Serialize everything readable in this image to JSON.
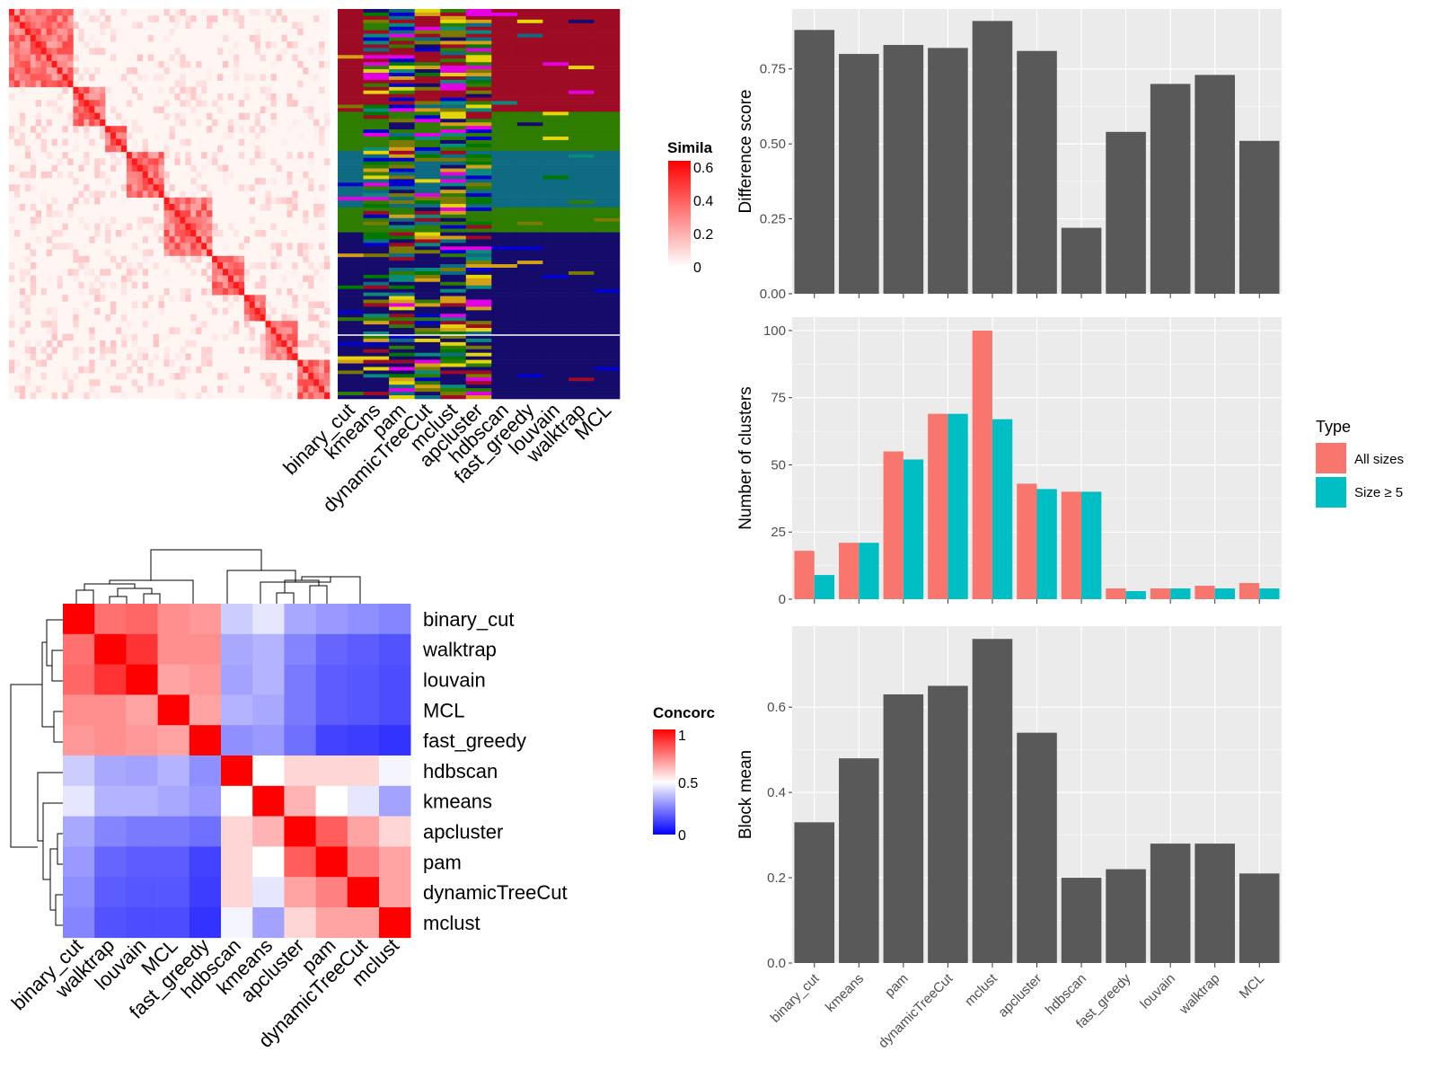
{
  "colors": {
    "bar_gray": "#595959",
    "panel_bg": "#ebebeb",
    "grid": "#ffffff",
    "all_sizes": "#F8766D",
    "size_ge5": "#00BFC4",
    "sim_high": "#ff0000",
    "concord_high": "#ff0000",
    "concord_mid": "#ffffff",
    "concord_low": "#0000ff",
    "cluster_palette": [
      "#9e0b24",
      "#0e6b82",
      "#140b6b",
      "#2e7d00",
      "#e5d60a",
      "#e400e4",
      "#0a8a7a",
      "#7a7a00",
      "#d4a017",
      "#0000cc",
      "#007700"
    ]
  },
  "similarity_heatmap": {
    "legend_title": "Simila",
    "legend_ticks": [
      "0.6",
      "0.4",
      "0.2",
      "0"
    ]
  },
  "method_labels_top": [
    "binary_cut",
    "kmeans",
    "pam",
    "dynamicTreeCut",
    "mclust",
    "apcluster",
    "hdbscan",
    "fast_greedy",
    "louvain",
    "walktrap",
    "MCL"
  ],
  "concordance": {
    "legend_title": "Concorc",
    "legend_ticks": [
      "1",
      "0.5",
      "0"
    ],
    "methods": [
      "binary_cut",
      "walktrap",
      "louvain",
      "MCL",
      "fast_greedy",
      "hdbscan",
      "kmeans",
      "apcluster",
      "pam",
      "dynamicTreeCut",
      "mclust"
    ],
    "matrix": [
      [
        1.0,
        0.78,
        0.8,
        0.72,
        0.7,
        0.4,
        0.45,
        0.33,
        0.3,
        0.28,
        0.26
      ],
      [
        0.78,
        1.0,
        0.9,
        0.72,
        0.72,
        0.33,
        0.35,
        0.26,
        0.2,
        0.18,
        0.16
      ],
      [
        0.8,
        0.9,
        1.0,
        0.68,
        0.7,
        0.32,
        0.35,
        0.24,
        0.18,
        0.17,
        0.15
      ],
      [
        0.72,
        0.72,
        0.68,
        1.0,
        0.68,
        0.35,
        0.33,
        0.24,
        0.18,
        0.17,
        0.15
      ],
      [
        0.7,
        0.72,
        0.7,
        0.68,
        1.0,
        0.28,
        0.3,
        0.22,
        0.13,
        0.12,
        0.1
      ],
      [
        0.4,
        0.33,
        0.32,
        0.35,
        0.28,
        1.0,
        0.5,
        0.58,
        0.58,
        0.58,
        0.48
      ],
      [
        0.45,
        0.35,
        0.35,
        0.33,
        0.3,
        0.5,
        1.0,
        0.65,
        0.5,
        0.45,
        0.32
      ],
      [
        0.33,
        0.26,
        0.24,
        0.24,
        0.22,
        0.58,
        0.65,
        1.0,
        0.82,
        0.68,
        0.58
      ],
      [
        0.3,
        0.2,
        0.18,
        0.18,
        0.13,
        0.58,
        0.5,
        0.82,
        1.0,
        0.75,
        0.68
      ],
      [
        0.28,
        0.18,
        0.17,
        0.17,
        0.12,
        0.58,
        0.45,
        0.68,
        0.75,
        1.0,
        0.68
      ],
      [
        0.26,
        0.16,
        0.15,
        0.15,
        0.1,
        0.48,
        0.32,
        0.58,
        0.68,
        0.68,
        1.0
      ]
    ]
  },
  "chart_data": [
    {
      "type": "bar",
      "ylabel": "Difference score",
      "categories": [
        "binary_cut",
        "kmeans",
        "pam",
        "dynamicTreeCut",
        "mclust",
        "apcluster",
        "hdbscan",
        "fast_greedy",
        "louvain",
        "walktrap",
        "MCL"
      ],
      "values": [
        0.88,
        0.8,
        0.83,
        0.82,
        0.91,
        0.81,
        0.22,
        0.54,
        0.7,
        0.73,
        0.51
      ],
      "ylim": [
        0,
        0.95
      ],
      "yticks": [
        "0.00",
        "0.25",
        "0.50",
        "0.75"
      ],
      "grid": true
    },
    {
      "type": "bar",
      "ylabel": "Number of clusters",
      "categories": [
        "binary_cut",
        "kmeans",
        "pam",
        "dynamicTreeCut",
        "mclust",
        "apcluster",
        "hdbscan",
        "fast_greedy",
        "louvain",
        "walktrap",
        "MCL"
      ],
      "series": [
        {
          "name": "All sizes",
          "values": [
            18,
            21,
            55,
            69,
            100,
            43,
            40,
            4,
            4,
            5,
            6
          ]
        },
        {
          "name": "Size ≥ 5",
          "values": [
            9,
            21,
            52,
            69,
            67,
            41,
            40,
            3,
            4,
            4,
            4
          ]
        }
      ],
      "ylim": [
        0,
        105
      ],
      "yticks": [
        "0",
        "25",
        "50",
        "75",
        "100"
      ],
      "legend_title": "Type",
      "legend_position": "right",
      "grid": true
    },
    {
      "type": "bar",
      "ylabel": "Block mean",
      "categories": [
        "binary_cut",
        "kmeans",
        "pam",
        "dynamicTreeCut",
        "mclust",
        "apcluster",
        "hdbscan",
        "fast_greedy",
        "louvain",
        "walktrap",
        "MCL"
      ],
      "values": [
        0.33,
        0.48,
        0.63,
        0.65,
        0.76,
        0.54,
        0.2,
        0.22,
        0.28,
        0.28,
        0.21
      ],
      "ylim": [
        0,
        0.79
      ],
      "yticks": [
        "0.0",
        "0.2",
        "0.4",
        "0.6"
      ],
      "grid": true
    }
  ]
}
